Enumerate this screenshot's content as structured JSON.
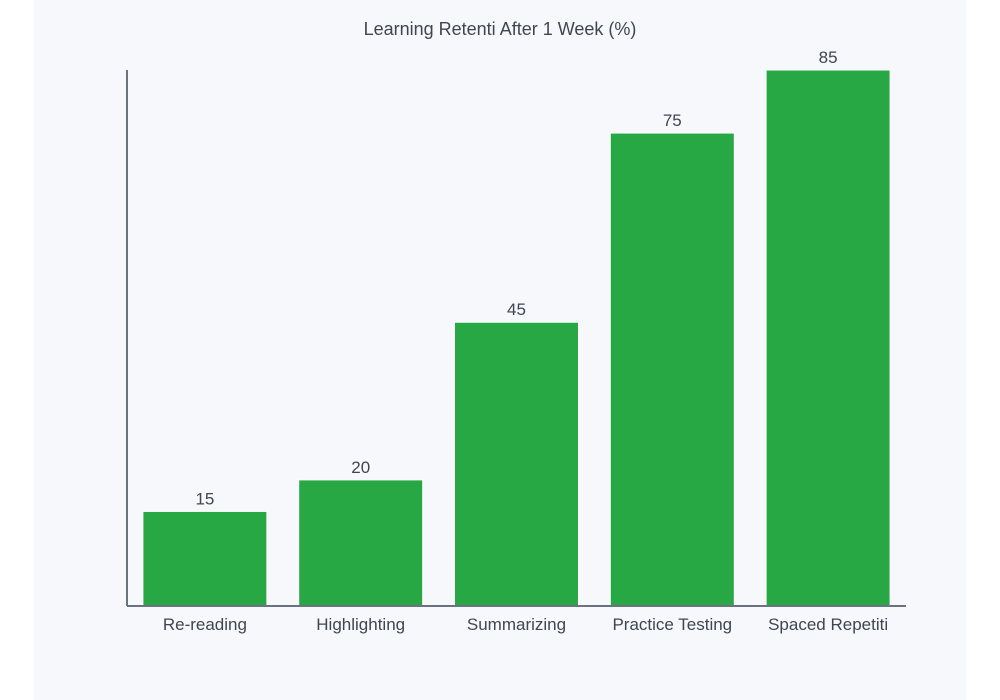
{
  "chart_data": {
    "type": "bar",
    "title": "Learning Retenti After 1 Week (%)",
    "xlabel": "",
    "ylabel": "",
    "categories": [
      "Re-reading",
      "Highlighting",
      "Summarizing",
      "Practice Testing",
      "Spaced Repetiti"
    ],
    "values": [
      15,
      20,
      45,
      75,
      85
    ],
    "ylim": [
      0,
      85
    ],
    "grid": false,
    "legend": "none",
    "bar_color": "#28a745",
    "axis_color": "#6b7280"
  }
}
